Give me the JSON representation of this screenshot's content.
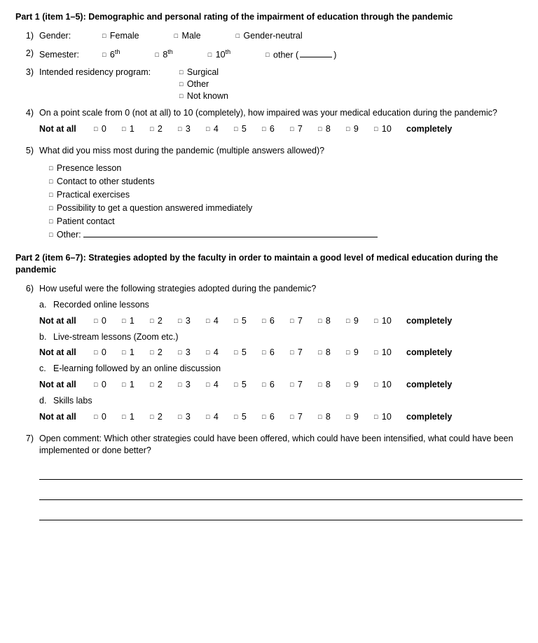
{
  "part1": {
    "title": "Part 1 (item 1–5): Demographic and personal rating of the impairment of education through the pandemic",
    "q1": {
      "num": "1)",
      "label": "Gender:",
      "opts": [
        "Female",
        "Male",
        "Gender-neutral"
      ]
    },
    "q2": {
      "num": "2)",
      "label": "Semester:",
      "opts": [
        {
          "base": "6",
          "sup": "th"
        },
        {
          "base": "8",
          "sup": "th"
        },
        {
          "base": "10",
          "sup": "th"
        }
      ],
      "other_label": "other"
    },
    "q3": {
      "num": "3)",
      "label": "Intended residency program:",
      "opts": [
        "Surgical",
        "Other",
        "Not known"
      ]
    },
    "q4": {
      "num": "4)",
      "text": "On a point scale from 0 (not at all) to 10 (completely), how impaired was your medical education during the pandemic?"
    },
    "q5": {
      "num": "5)",
      "text": "What did you miss most during the pandemic (multiple answers allowed)?",
      "items": [
        "Presence lesson",
        "Contact to other students",
        "Practical exercises",
        "Possibility to get a question answered immediately",
        "Patient contact"
      ],
      "other_label": "Other:"
    }
  },
  "scale": {
    "left": "Not at all",
    "right": "completely",
    "vals": [
      "0",
      "1",
      "2",
      "3",
      "4",
      "5",
      "6",
      "7",
      "8",
      "9",
      "10"
    ]
  },
  "part2": {
    "title": "Part 2 (item 6–7): Strategies adopted by the faculty in order to maintain a good level of medical education during the pandemic",
    "q6": {
      "num": "6)",
      "text": "How useful were the following strategies adopted during the pandemic?",
      "subs": [
        {
          "let": "a.",
          "label": "Recorded online lessons"
        },
        {
          "let": "b.",
          "label": "Live-stream lessons (Zoom etc.)"
        },
        {
          "let": "c.",
          "label": "E-learning followed by an online discussion"
        },
        {
          "let": "d.",
          "label": "Skills labs"
        }
      ]
    },
    "q7": {
      "num": "7)",
      "text": "Open comment: Which other strategies could have been offered, which could have been intensified, what could have been implemented or done better?"
    }
  },
  "style": {
    "checkbox_glyph": "□"
  }
}
